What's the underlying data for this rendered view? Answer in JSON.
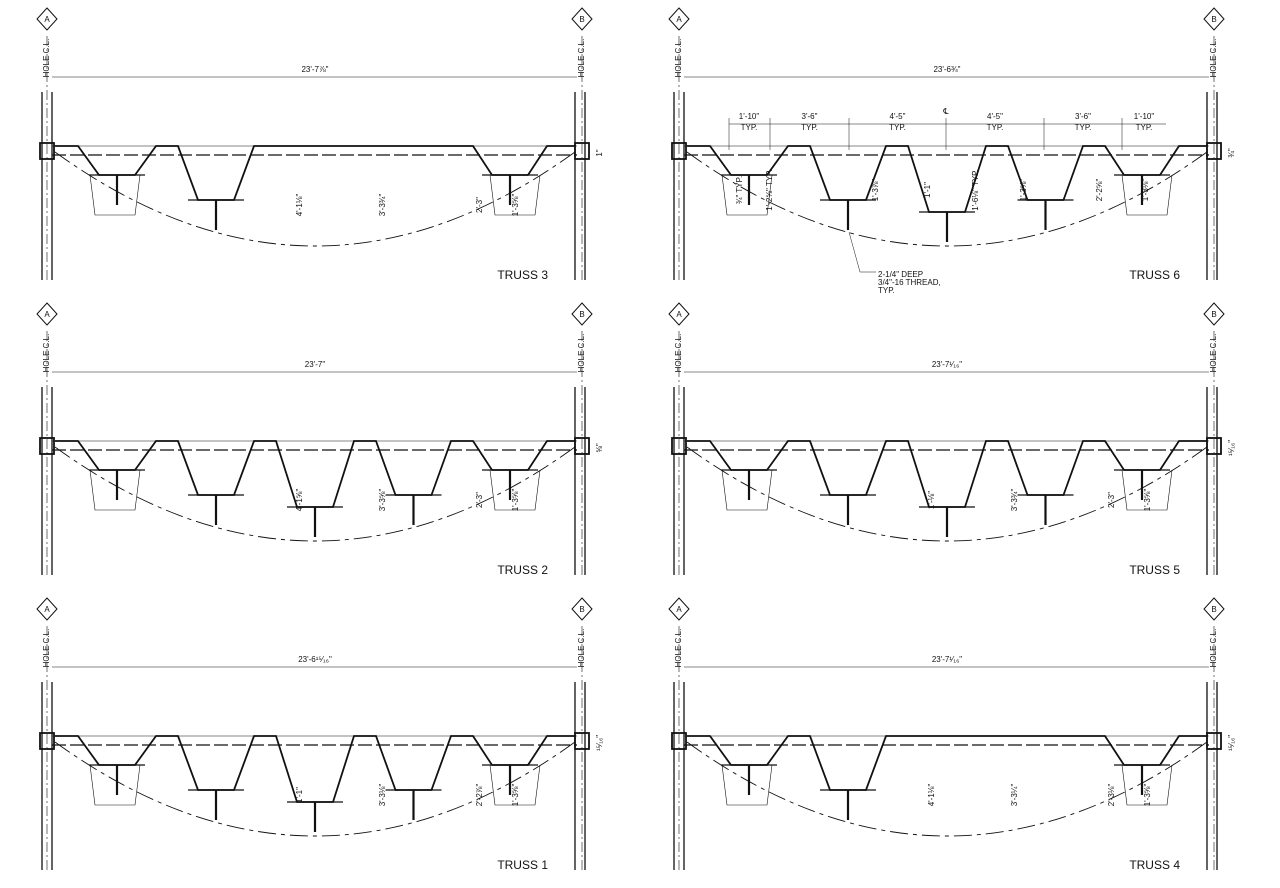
{
  "panels": [
    {
      "grid_left": "A",
      "grid_right": "B",
      "hole_left": "HOLE C.L.",
      "hole_right": "HOLE C.L.",
      "span": "23'-7⅞\"",
      "end_dim": "1\"",
      "dims": [
        "4'-1⅛\"",
        "3'-3¾\"",
        "2'-3\"",
        "1'-3⅝\""
      ],
      "title": "TRUSS 3"
    },
    {
      "grid_left": "A",
      "grid_right": "B",
      "hole_left": "HOLE C.L.",
      "hole_right": "HOLE C.L.",
      "span": "23'-6¾\"",
      "end_dim": "¾\"",
      "dims": [
        "¾\" TYP.",
        "1'-2⅝\" TYP.",
        "1'-3⅞\"",
        "1'-1\"",
        "1'-6⅛\" TYP.",
        "1'-3⅝\"",
        "2'-2⅝\"",
        "1'-3⅛\""
      ],
      "title": "TRUSS 6",
      "spacings": [
        {
          "dim": "1'-10\"",
          "note": "TYP."
        },
        {
          "dim": "3'-6\"",
          "note": "TYP."
        },
        {
          "dim": "4'-5\"",
          "note": "TYP."
        },
        {
          "dim": "4'-5\"",
          "note": "TYP."
        },
        {
          "dim": "3'-6\"",
          "note": "TYP."
        },
        {
          "dim": "1'-10\"",
          "note": "TYP."
        }
      ],
      "centerline": "℄",
      "note": [
        "2-1/4\" DEEP",
        "3/4\"-16 THREAD,",
        "TYP."
      ]
    },
    {
      "grid_left": "A",
      "grid_right": "B",
      "hole_left": "HOLE C.L.",
      "hole_right": "HOLE C.L.",
      "span": "23'-7\"",
      "end_dim": "⅝\"",
      "dims": [
        "4'-1⅝\"",
        "3'-3⅝\"",
        "2'-3\"",
        "1'-3⅝\""
      ],
      "title": "TRUSS 2"
    },
    {
      "grid_left": "A",
      "grid_right": "B",
      "hole_left": "HOLE C.L.",
      "hole_right": "HOLE C.L.",
      "span": "23'-7¹⁄₁₆\"",
      "end_dim": "¹⁵⁄₁₆\"",
      "dims": [
        "1'-⅛\"",
        "3'-3¾\"",
        "2'-3\"",
        "1'-3⅝\""
      ],
      "title": "TRUSS 5"
    },
    {
      "grid_left": "A",
      "grid_right": "B",
      "hole_left": "HOLE C.L.",
      "hole_right": "HOLE C.L.",
      "span": "23'-6¹⁵⁄₁₆\"",
      "end_dim": "¹⁵⁄₁₆\"",
      "dims": [
        "1'-1\"",
        "3'-3⅛\"",
        "2'-2⅞\"",
        "1'-3⅝\""
      ],
      "title": "TRUSS 1"
    },
    {
      "grid_left": "A",
      "grid_right": "B",
      "hole_left": "HOLE C.L.",
      "hole_right": "HOLE C.L.",
      "span": "23'-7¹⁄₁₆\"",
      "end_dim": "¹⁵⁄₁₆\"",
      "dims": [
        "4'-1⅛\"",
        "3'-3¼\"",
        "2'-3⅛\"",
        "1'-3⅝\""
      ],
      "title": "TRUSS 4"
    }
  ]
}
